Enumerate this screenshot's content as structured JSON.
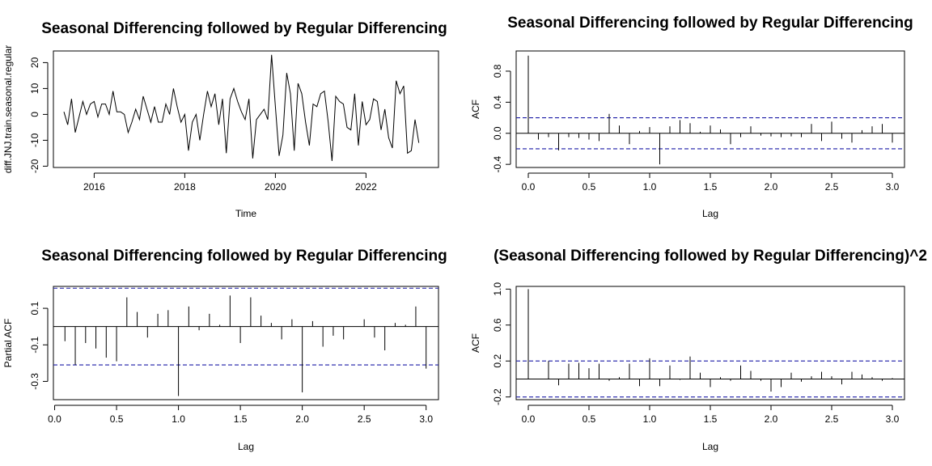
{
  "chart_data": [
    {
      "type": "line",
      "title": "Seasonal Differencing followed by Regular Differencing",
      "xlabel": "Time",
      "ylabel": "diff.JNJ.train.seasonal.regular",
      "xlim": [
        2015.1,
        2023.6
      ],
      "ylim": [
        -20.5,
        24.5
      ],
      "xticks": [
        2016,
        2018,
        2020,
        2022
      ],
      "yticks": [
        -20,
        -10,
        0,
        10,
        20
      ],
      "x_start": 2015.333,
      "x_step": 0.0833333,
      "values": [
        1,
        -4,
        6,
        -7,
        -1,
        5,
        0,
        4,
        5,
        -1,
        4,
        4,
        0,
        9,
        1,
        1,
        0,
        -7,
        -3,
        2,
        -2,
        7,
        2,
        -3,
        3,
        -3,
        -3,
        4,
        0,
        10,
        3,
        -3,
        0,
        -14,
        -3,
        0,
        -10,
        0,
        9,
        3,
        8,
        -4,
        6,
        -15,
        6,
        10,
        5,
        1,
        -2,
        6,
        -17,
        -2,
        0,
        2,
        -2,
        23,
        3,
        -16,
        -8,
        16,
        8,
        -14,
        12,
        8,
        -3,
        -12,
        4,
        3,
        8,
        9,
        -3,
        -18,
        7,
        5,
        4,
        -5,
        -6,
        8,
        -12,
        5,
        -4,
        -2,
        6,
        5,
        -6,
        2,
        -9,
        -13,
        13,
        8,
        11,
        -15,
        -14,
        -2,
        -11
      ]
    },
    {
      "type": "bar",
      "title": "Seasonal Differencing followed by Regular Differencing",
      "xlabel": "Lag",
      "ylabel": "ACF",
      "xlim": [
        -0.1,
        3.1
      ],
      "ylim": [
        -0.44,
        1.06
      ],
      "xticks": [
        0.0,
        0.5,
        1.0,
        1.5,
        2.0,
        2.5,
        3.0
      ],
      "xtick_labels": [
        "0.0",
        "0.5",
        "1.0",
        "1.5",
        "2.0",
        "2.5",
        "3.0"
      ],
      "yticks": [
        -0.4,
        0.0,
        0.4,
        0.8
      ],
      "ytick_labels": [
        "-0.4",
        "0.0",
        "0.4",
        "0.8"
      ],
      "conf_limit": 0.2,
      "lag_step": 0.0833333,
      "values": [
        1.0,
        -0.08,
        -0.05,
        -0.22,
        -0.05,
        -0.06,
        -0.08,
        -0.1,
        0.25,
        0.1,
        -0.14,
        0.03,
        0.08,
        -0.4,
        0.09,
        0.17,
        0.13,
        0.02,
        0.1,
        0.05,
        -0.14,
        -0.05,
        0.09,
        -0.03,
        -0.04,
        -0.05,
        -0.04,
        -0.05,
        0.12,
        -0.1,
        0.15,
        -0.07,
        -0.12,
        0.04,
        0.09,
        0.12,
        -0.12
      ]
    },
    {
      "type": "bar",
      "title": "Seasonal Differencing followed by Regular Differencing",
      "xlabel": "Lag",
      "ylabel": "Partial ACF",
      "xlim": [
        -0.01,
        3.1
      ],
      "ylim": [
        -0.4,
        0.22
      ],
      "xticks": [
        0.0,
        0.5,
        1.0,
        1.5,
        2.0,
        2.5,
        3.0
      ],
      "xtick_labels": [
        "0.0",
        "0.5",
        "1.0",
        "1.5",
        "2.0",
        "2.5",
        "3.0"
      ],
      "yticks": [
        -0.3,
        -0.1,
        0.1
      ],
      "ytick_labels": [
        "-0.3",
        "-0.1",
        "0.1"
      ],
      "conf_limit": 0.21,
      "lag_step": 0.0833333,
      "values": [
        -0.08,
        -0.21,
        -0.09,
        -0.12,
        -0.17,
        -0.19,
        0.16,
        0.08,
        -0.06,
        0.07,
        0.09,
        -0.38,
        0.11,
        -0.02,
        0.07,
        0.01,
        0.17,
        -0.09,
        0.16,
        0.06,
        0.02,
        -0.07,
        0.04,
        -0.36,
        0.03,
        -0.11,
        -0.05,
        -0.07,
        0.0,
        0.04,
        -0.06,
        -0.13,
        0.02,
        0.01,
        0.11,
        -0.23
      ]
    },
    {
      "type": "bar",
      "title": "(Seasonal Differencing followed by Regular Differencing)^2",
      "xlabel": "Lag",
      "ylabel": "ACF",
      "xlim": [
        -0.1,
        3.1
      ],
      "ylim": [
        -0.23,
        1.03
      ],
      "xticks": [
        0.0,
        0.5,
        1.0,
        1.5,
        2.0,
        2.5,
        3.0
      ],
      "xtick_labels": [
        "0.0",
        "0.5",
        "1.0",
        "1.5",
        "2.0",
        "2.5",
        "3.0"
      ],
      "yticks": [
        -0.2,
        0.2,
        0.6,
        1.0
      ],
      "ytick_labels": [
        "-0.2",
        "0.2",
        "0.6",
        "1.0"
      ],
      "conf_limit": 0.2,
      "lag_step": 0.0833333,
      "values": [
        1.0,
        0.0,
        0.2,
        -0.07,
        0.17,
        0.18,
        0.12,
        0.17,
        -0.02,
        0.02,
        0.17,
        -0.08,
        0.23,
        -0.08,
        0.15,
        -0.01,
        0.25,
        0.07,
        -0.09,
        0.02,
        -0.02,
        0.15,
        0.09,
        -0.02,
        -0.14,
        -0.09,
        0.07,
        -0.03,
        0.03,
        0.08,
        0.03,
        -0.06,
        0.08,
        0.05,
        0.02,
        -0.02,
        0.01
      ]
    }
  ]
}
